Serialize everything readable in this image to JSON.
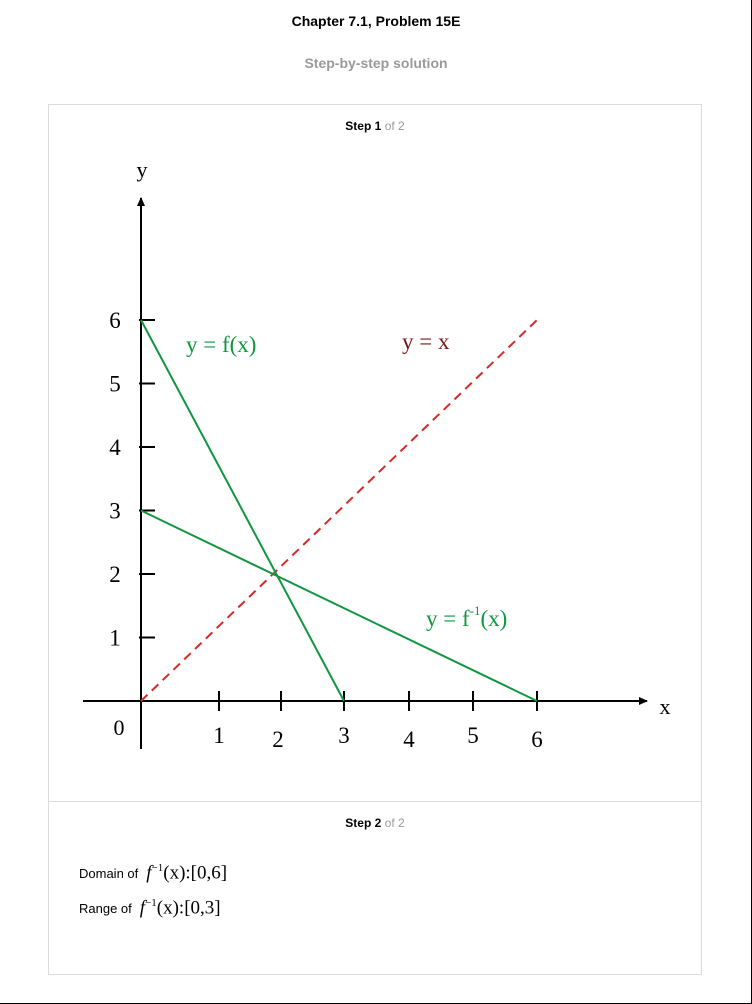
{
  "header": {
    "title": "Chapter 7.1, Problem 15E",
    "subtitle": "Step-by-step solution"
  },
  "steps": [
    {
      "label": "Step",
      "number": "1",
      "of_text": "of 2"
    },
    {
      "label": "Step",
      "number": "2",
      "of_text": "of 2"
    }
  ],
  "graph": {
    "axis_x_label": "x",
    "axis_y_label": "y",
    "origin_label": "0",
    "x_ticks": [
      "1",
      "2",
      "3",
      "4",
      "5",
      "6"
    ],
    "y_ticks": [
      "1",
      "2",
      "3",
      "4",
      "5",
      "6"
    ],
    "label_fx": "y = f(x)",
    "label_yx": "y = x",
    "label_finv_prefix": "y = f",
    "label_finv_sup": "-1",
    "label_finv_suffix": "(x)",
    "colors": {
      "green": "#119640",
      "red": "#d62a2a",
      "axis": "#000000"
    }
  },
  "chart_data": {
    "type": "line",
    "x": [
      0,
      6
    ],
    "series": [
      {
        "name": "y = f(x)",
        "points": [
          [
            0,
            6
          ],
          [
            3,
            0
          ]
        ]
      },
      {
        "name": "y = f^-1(x)",
        "points": [
          [
            0,
            3
          ],
          [
            6,
            0
          ]
        ]
      },
      {
        "name": "y = x",
        "points": [
          [
            0,
            0
          ],
          [
            6,
            6
          ]
        ]
      }
    ],
    "xlabel": "x",
    "ylabel": "y",
    "xlim": [
      0,
      6
    ],
    "ylim": [
      0,
      6
    ]
  },
  "step2": {
    "domain_label": "Domain of",
    "domain_value": ":[0,6]",
    "range_label": "Range of",
    "range_value": ":[0,3]",
    "func_f": "f",
    "func_sup": "−1",
    "func_arg": "(x)"
  }
}
